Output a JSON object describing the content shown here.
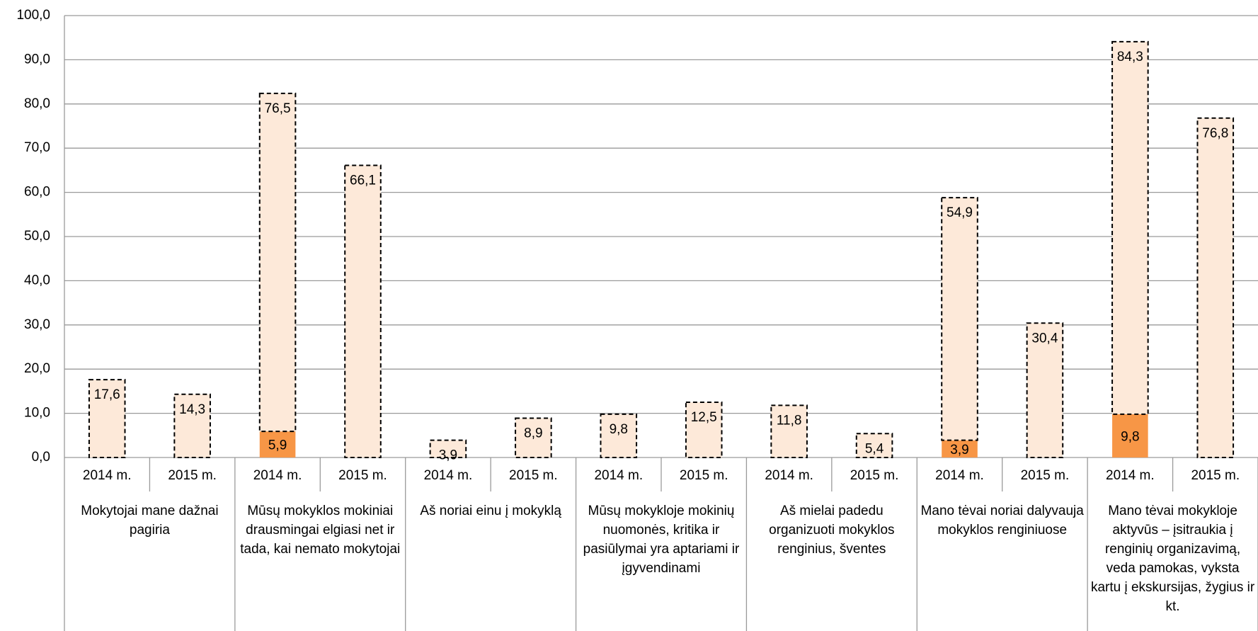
{
  "chart_data": {
    "type": "stacked_bar",
    "categories": [
      "2014 m.",
      "2015 m.",
      "2014 m.",
      "2015 m.",
      "2014 m.",
      "2015 m.",
      "2014 m.",
      "2015 m.",
      "2014 m.",
      "2015 m.",
      "2014 m.",
      "2015 m.",
      "2014 m.",
      "2015 m."
    ],
    "group_labels": [
      "Mokytojai mane dažnai pagiria",
      "Mūsų mokyklos mokiniai drausmingai elgiasi net ir tada, kai nemato mokytojai",
      "Aš noriai einu į mokyklą",
      "Mūsų mokykloje mokinių nuomonės, kritika ir pasiūlymai  yra aptariami ir įgyvendinami",
      "Aš mielai padedu organizuoti mokyklos renginius, šventes",
      "Mano tėvai noriai dalyvauja mokyklos renginiuose",
      "Mano tėvai  mokykloje aktyvūs – įsitraukia į renginių organizavimą, veda pamokas, vyksta kartu į ekskursijas, žygius ir kt."
    ],
    "series": [
      {
        "color": "#f79646",
        "dashed": false,
        "values": [
          null,
          null,
          5.9,
          null,
          null,
          null,
          null,
          null,
          null,
          null,
          3.9,
          null,
          9.8,
          null
        ],
        "value_labels": [
          null,
          null,
          "5,9",
          null,
          null,
          null,
          null,
          null,
          null,
          null,
          "3,9",
          null,
          "9,8",
          null
        ]
      },
      {
        "color": "#fde9d9",
        "dashed": true,
        "values": [
          17.6,
          14.3,
          76.5,
          66.1,
          3.9,
          8.9,
          9.8,
          12.5,
          11.8,
          5.4,
          54.9,
          30.4,
          84.3,
          76.8
        ],
        "value_labels": [
          "17,6",
          "14,3",
          "76,5",
          "66,1",
          "3,9",
          "8,9",
          "9,8",
          "12,5",
          "11,8",
          "5,4",
          "54,9",
          "30,4",
          "84,3",
          "76,8"
        ]
      }
    ],
    "ylim": [
      0,
      100
    ],
    "yticks": [
      {
        "value": 0,
        "label": "0,0"
      },
      {
        "value": 10,
        "label": "10,0"
      },
      {
        "value": 20,
        "label": "20,0"
      },
      {
        "value": 30,
        "label": "30,0"
      },
      {
        "value": 40,
        "label": "40,0"
      },
      {
        "value": 50,
        "label": "50,0"
      },
      {
        "value": 60,
        "label": "60,0"
      },
      {
        "value": 70,
        "label": "70,0"
      },
      {
        "value": 80,
        "label": "80,0"
      },
      {
        "value": 90,
        "label": "90,0"
      },
      {
        "value": 100,
        "label": "100,0"
      }
    ],
    "grid": true
  }
}
